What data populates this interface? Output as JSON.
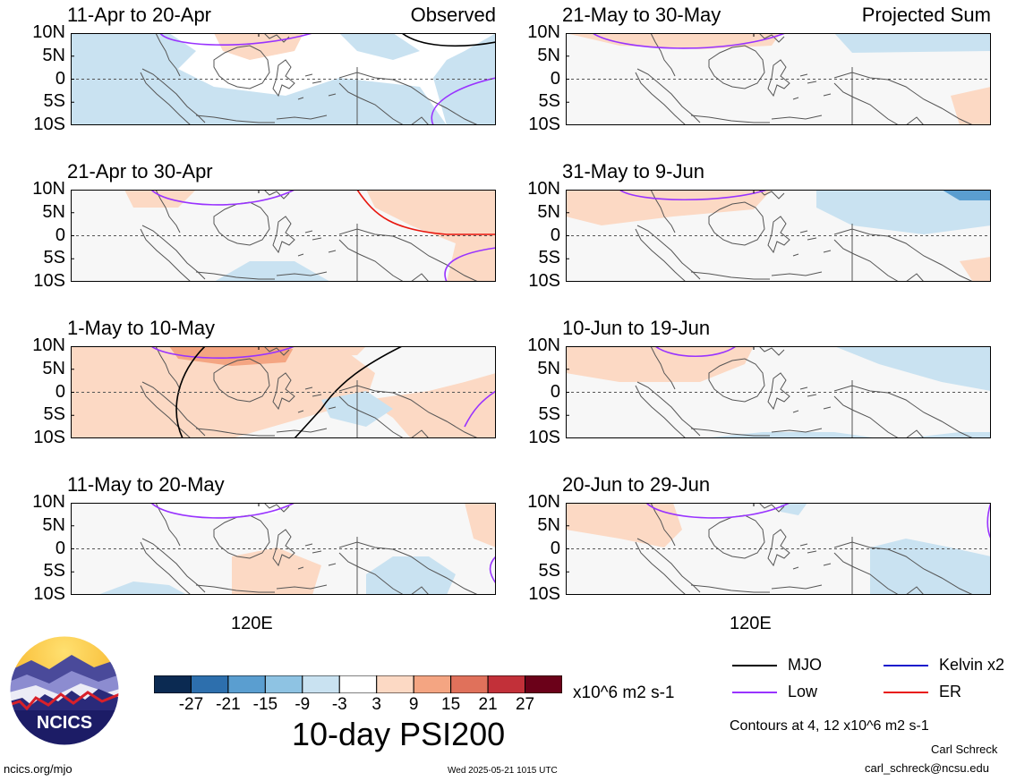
{
  "panels": [
    {
      "title": "11-Apr to 20-Apr",
      "corner": "Observed"
    },
    {
      "title": "21-Apr to 30-Apr",
      "corner": ""
    },
    {
      "title": "1-May to 10-May",
      "corner": ""
    },
    {
      "title": "11-May to 20-May",
      "corner": ""
    },
    {
      "title": "21-May to 30-May",
      "corner": "Projected Sum"
    },
    {
      "title": "31-May to 9-Jun",
      "corner": ""
    },
    {
      "title": "10-Jun to 19-Jun",
      "corner": ""
    },
    {
      "title": "20-Jun to 29-Jun",
      "corner": ""
    }
  ],
  "lat_labels": [
    "10N",
    "5N",
    "0",
    "5S",
    "10S"
  ],
  "lon_label": "120E",
  "colorbar": {
    "colors": [
      "#0b2a52",
      "#2d6fad",
      "#5a9ed0",
      "#8ec3e3",
      "#c9e2f1",
      "#ffffff",
      "#fcd9c4",
      "#f4a582",
      "#e0715b",
      "#c23039",
      "#6b0119"
    ],
    "ticks": [
      "-27",
      "-21",
      "-15",
      "-9",
      "-3",
      "3",
      "9",
      "15",
      "21",
      "27"
    ],
    "units": "x10^6 m2 s-1"
  },
  "main_title": "10-day PSI200",
  "legend": [
    {
      "label": "MJO",
      "color": "#000000"
    },
    {
      "label": "Kelvin x2",
      "color": "#1a1acc"
    },
    {
      "label": "Low",
      "color": "#9933ff"
    },
    {
      "label": "ER",
      "color": "#e8170f"
    }
  ],
  "contours_note": "Contours at 4, 12 x10^6 m2 s-1",
  "author_name": "Carl Schreck",
  "author_email": "carl_schreck@ncsu.edu",
  "site_url": "ncics.org/mjo",
  "timestamp": "Wed 2025-05-21 1015 UTC",
  "logo_text": "NCICS"
}
